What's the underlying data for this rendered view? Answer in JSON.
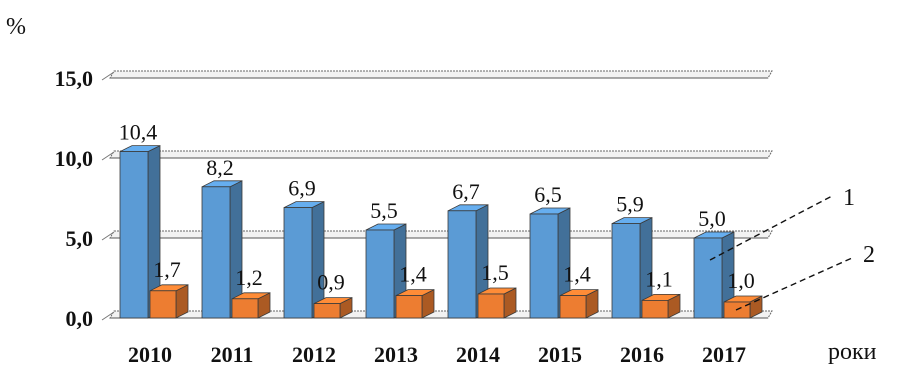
{
  "chart_data": {
    "type": "bar",
    "y_unit_label": "%",
    "x_unit_label": "роки",
    "categories": [
      "2010",
      "2011",
      "2012",
      "2013",
      "2014",
      "2015",
      "2016",
      "2017"
    ],
    "y_ticks": [
      "0,0",
      "5,0",
      "10,0",
      "15,0"
    ],
    "ylim": [
      0,
      15
    ],
    "grid": true,
    "series": [
      {
        "name": "1",
        "values": [
          10.4,
          8.2,
          6.9,
          5.5,
          6.7,
          6.5,
          5.9,
          5.0
        ],
        "labels": [
          "10,4",
          "8,2",
          "6,9",
          "5,5",
          "6,7",
          "6,5",
          "5,9",
          "5,0"
        ],
        "color": "#5b9bd5"
      },
      {
        "name": "2",
        "values": [
          1.7,
          1.2,
          0.9,
          1.4,
          1.5,
          1.4,
          1.1,
          1.0
        ],
        "labels": [
          "1,7",
          "1,2",
          "0,9",
          "1,4",
          "1,5",
          "1,4",
          "1,1",
          "1,0"
        ],
        "color": "#ed7d31"
      }
    ]
  }
}
